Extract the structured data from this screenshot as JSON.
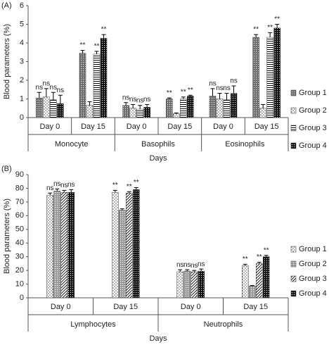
{
  "chart_data": [
    {
      "type": "bar",
      "panel_label": "(A)",
      "y_label": "Blood parameters (%)",
      "x_label": "Days",
      "categories": [
        "Day 0",
        "Day 15",
        "Day 0",
        "Day 15",
        "Day 0",
        "Day 15"
      ],
      "category_groups": [
        "Monocyte",
        "Basophils",
        "Eosinophils"
      ],
      "ylim": [
        0,
        6
      ],
      "yticks": [
        0,
        1,
        2,
        3,
        4,
        5,
        6
      ],
      "series": [
        {
          "name": "Group 1",
          "pattern": "dense-dots",
          "values": [
            1.05,
            3.45,
            0.65,
            1.0,
            1.15,
            4.3
          ],
          "errors": [
            0.3,
            0.15,
            0.15,
            0.05,
            0.4,
            0.15
          ],
          "sig": [
            "ns",
            "**",
            "ns",
            "**",
            "ns",
            "**"
          ]
        },
        {
          "name": "Group 2",
          "pattern": "sparse-dots",
          "values": [
            1.1,
            0.65,
            0.5,
            0.2,
            1.0,
            0.5
          ],
          "errors": [
            0.45,
            0.2,
            0.2,
            0.05,
            0.3,
            0.2
          ],
          "sig": [
            "ns",
            null,
            "ns",
            null,
            "ns",
            null
          ]
        },
        {
          "name": "Group 3",
          "pattern": "horizontal-lines",
          "values": [
            0.95,
            3.4,
            0.45,
            1.0,
            0.95,
            4.3
          ],
          "errors": [
            0.4,
            0.15,
            0.2,
            0.1,
            0.35,
            0.25
          ],
          "sig": [
            "ns",
            "**",
            "ns",
            "**",
            "ns",
            "**"
          ]
        },
        {
          "name": "Group 4",
          "pattern": "black-dots",
          "values": [
            0.75,
            4.25,
            0.55,
            1.15,
            1.3,
            4.8
          ],
          "errors": [
            0.45,
            0.2,
            0.15,
            0.05,
            0.4,
            0.2
          ],
          "sig": [
            "ns",
            "**",
            "ns",
            "**",
            "ns",
            "**"
          ]
        }
      ]
    },
    {
      "type": "bar",
      "panel_label": "(B)",
      "y_label": "Blood parameters (%)",
      "x_label": "Days",
      "categories": [
        "Day 0",
        "Day 15",
        "Day 0",
        "Day 15"
      ],
      "category_groups": [
        "Lymphocytes",
        "Neutrophils"
      ],
      "ylim": [
        0,
        90
      ],
      "yticks": [
        0,
        10,
        20,
        30,
        40,
        50,
        60,
        70,
        80,
        90
      ],
      "series": [
        {
          "name": "Group 1",
          "pattern": "sparse-dots",
          "values": [
            75,
            77,
            19,
            23.5
          ],
          "errors": [
            1.5,
            1.5,
            1.5,
            1
          ],
          "sig": [
            "ns",
            "**",
            "ns",
            "**"
          ]
        },
        {
          "name": "Group 2",
          "pattern": "grey-check",
          "values": [
            78,
            64,
            19.5,
            8.5
          ],
          "errors": [
            1.5,
            1,
            1,
            0.5
          ],
          "sig": [
            "ns",
            null,
            "ns",
            null
          ]
        },
        {
          "name": "Group 3",
          "pattern": "diagonal-lines",
          "values": [
            77,
            76.5,
            19,
            25
          ],
          "errors": [
            1.5,
            1,
            1,
            1
          ],
          "sig": [
            "ns",
            "**",
            "ns",
            "**"
          ]
        },
        {
          "name": "Group 4",
          "pattern": "black-dots",
          "values": [
            77,
            79,
            19.5,
            30
          ],
          "errors": [
            2,
            1.5,
            1.5,
            1
          ],
          "sig": [
            "ns",
            "**",
            "ns",
            "**"
          ]
        }
      ]
    }
  ]
}
